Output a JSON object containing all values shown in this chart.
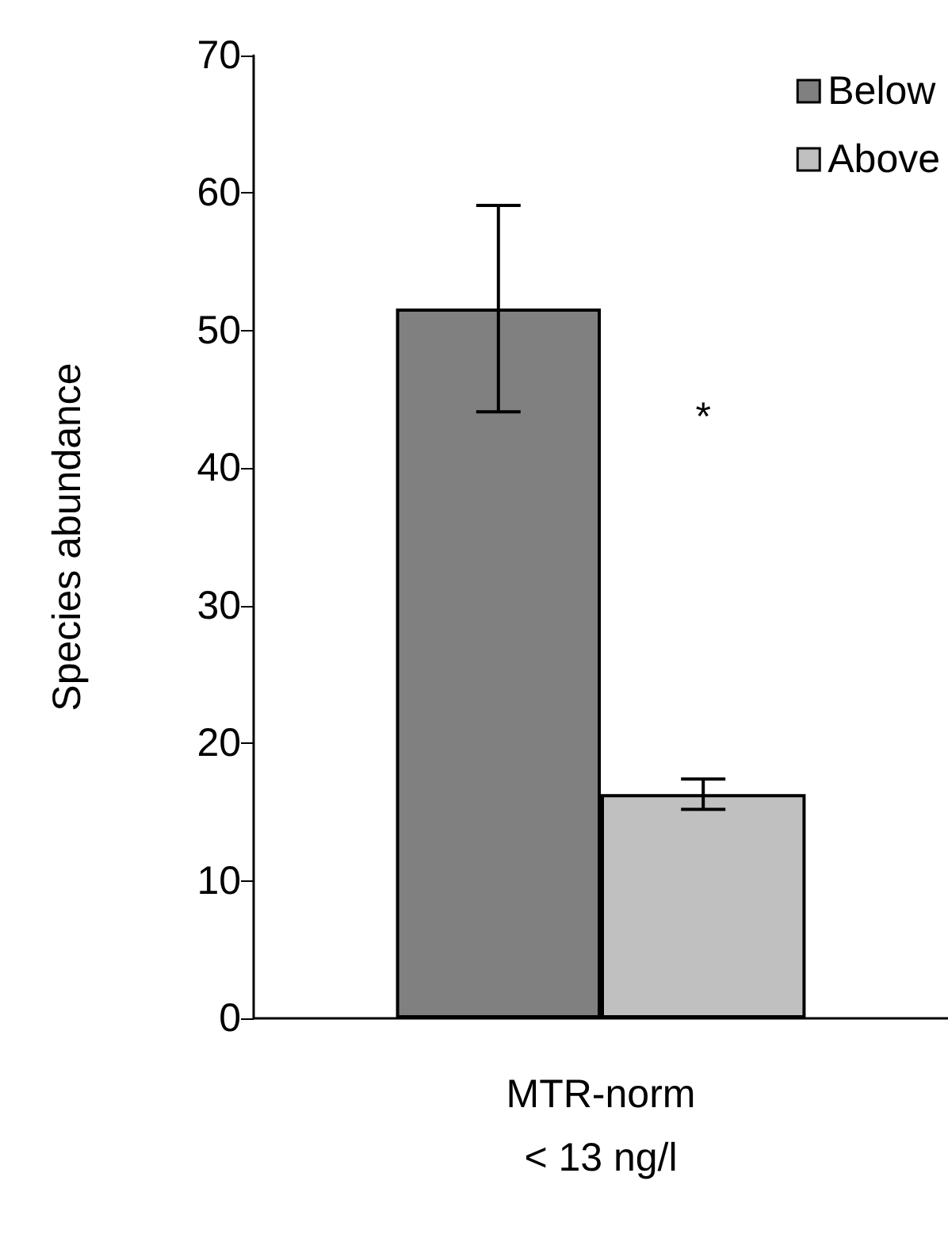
{
  "chart_data": {
    "type": "bar",
    "ylabel": "Species abundance",
    "categories": [
      "MTR-norm\n< 13 ng/l"
    ],
    "series": [
      {
        "name": "Below",
        "color": "#808080",
        "values": [
          51.6
        ],
        "errors": [
          7.5
        ]
      },
      {
        "name": "Above",
        "color": "#c0c0c0",
        "values": [
          16.3
        ],
        "errors": [
          1.1
        ]
      }
    ],
    "ylim": [
      0,
      70
    ],
    "yticks": [
      0,
      10,
      20,
      30,
      40,
      50,
      60,
      70
    ],
    "grid": false,
    "legend": "top right",
    "annotations": [
      "*"
    ]
  }
}
